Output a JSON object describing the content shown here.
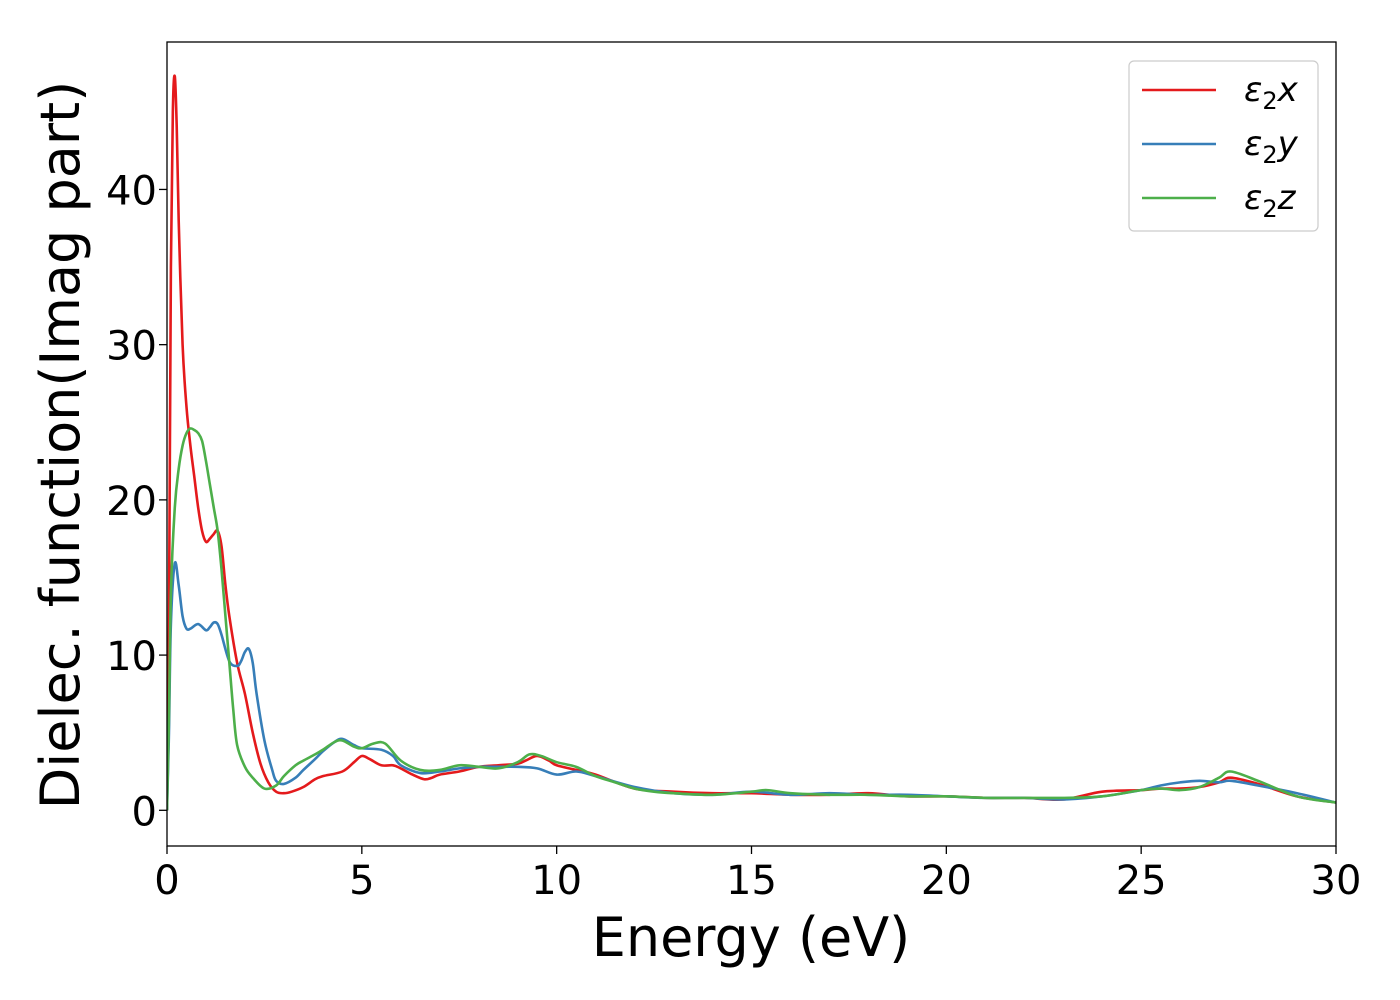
{
  "chart_data": {
    "type": "line",
    "xlabel": "Energy (eV)",
    "ylabel": "Dielec. function(Imag part)",
    "xlim": [
      0,
      30
    ],
    "ylim": [
      -2.3,
      49.5
    ],
    "xticks": [
      0,
      5,
      10,
      15,
      20,
      25,
      30
    ],
    "xtick_labels": [
      "0",
      "5",
      "10",
      "15",
      "20",
      "25",
      "30"
    ],
    "yticks": [
      0,
      10,
      20,
      30,
      40
    ],
    "ytick_labels": [
      "0",
      "10",
      "20",
      "30",
      "40"
    ],
    "grid": false,
    "legend_position": "top-right",
    "series": [
      {
        "name": "ε2x",
        "legend_main": "ε",
        "legend_sub": "2",
        "legend_suffix": "x",
        "color": "#e41a1c",
        "x": [
          0,
          0.05,
          0.1,
          0.15,
          0.2,
          0.25,
          0.3,
          0.4,
          0.5,
          0.6,
          0.7,
          0.8,
          0.9,
          1.0,
          1.1,
          1.2,
          1.3,
          1.4,
          1.5,
          1.6,
          1.8,
          2.0,
          2.2,
          2.4,
          2.6,
          2.8,
          3.0,
          3.2,
          3.5,
          3.8,
          4.0,
          4.5,
          4.8,
          5.0,
          5.2,
          5.5,
          5.8,
          6.0,
          6.3,
          6.6,
          6.8,
          7.0,
          7.5,
          8.0,
          8.5,
          9.0,
          9.2,
          9.5,
          9.8,
          10.0,
          10.5,
          11.0,
          12.0,
          13.0,
          14.0,
          15.0,
          16.0,
          17.0,
          18.0,
          19.0,
          20.0,
          21.0,
          22.0,
          23.0,
          24.0,
          25.0,
          25.5,
          26.0,
          26.5,
          27.0,
          27.3,
          28.0,
          29.0,
          30.0
        ],
        "y": [
          0,
          12,
          35,
          45,
          47.3,
          44,
          38,
          30,
          26,
          23.5,
          21.5,
          19.5,
          18,
          17.3,
          17.5,
          17.8,
          18,
          17,
          14.5,
          12.5,
          9.5,
          7.5,
          5,
          3,
          1.8,
          1.2,
          1.1,
          1.2,
          1.5,
          2.0,
          2.2,
          2.5,
          3.1,
          3.5,
          3.3,
          2.9,
          2.9,
          2.7,
          2.3,
          2.0,
          2.1,
          2.3,
          2.5,
          2.8,
          2.9,
          3.0,
          3.2,
          3.5,
          3.2,
          2.9,
          2.6,
          2.3,
          1.4,
          1.2,
          1.1,
          1.1,
          1.0,
          1.0,
          1.1,
          0.9,
          0.9,
          0.8,
          0.8,
          0.7,
          1.2,
          1.3,
          1.4,
          1.4,
          1.5,
          1.8,
          2.1,
          1.7,
          0.9,
          0.5
        ]
      },
      {
        "name": "ε2y",
        "legend_main": "ε",
        "legend_sub": "2",
        "legend_suffix": "y",
        "color": "#377eb8",
        "x": [
          0,
          0.05,
          0.1,
          0.2,
          0.3,
          0.4,
          0.5,
          0.6,
          0.8,
          1.0,
          1.1,
          1.2,
          1.3,
          1.4,
          1.6,
          1.8,
          1.9,
          2.0,
          2.1,
          2.2,
          2.3,
          2.5,
          2.7,
          2.8,
          3.0,
          3.3,
          3.5,
          3.8,
          4.0,
          4.3,
          4.5,
          4.8,
          5.0,
          5.5,
          5.8,
          6.0,
          6.5,
          7.0,
          7.5,
          8.0,
          8.5,
          9.0,
          9.5,
          10.0,
          10.5,
          11.0,
          12.0,
          13.0,
          14.0,
          15.0,
          16.0,
          17.0,
          18.0,
          19.0,
          20.0,
          21.0,
          22.0,
          23.0,
          24.0,
          25.0,
          25.5,
          26.0,
          26.5,
          27.0,
          27.3,
          28.0,
          29.0,
          30.0
        ],
        "y": [
          0,
          5,
          12,
          15.9,
          14.5,
          12.5,
          11.7,
          11.7,
          12.0,
          11.6,
          11.8,
          12.1,
          12.0,
          11.3,
          9.6,
          9.3,
          9.6,
          10.2,
          10.4,
          9.5,
          7.5,
          4.5,
          2.6,
          1.9,
          1.7,
          2.1,
          2.6,
          3.3,
          3.8,
          4.4,
          4.6,
          4.2,
          4.0,
          3.9,
          3.5,
          2.9,
          2.4,
          2.5,
          2.7,
          2.8,
          2.8,
          2.8,
          2.7,
          2.3,
          2.5,
          2.2,
          1.5,
          1.1,
          1.0,
          1.2,
          1.0,
          1.1,
          1.0,
          1.0,
          0.9,
          0.8,
          0.8,
          0.7,
          0.9,
          1.3,
          1.6,
          1.8,
          1.9,
          1.8,
          1.9,
          1.6,
          1.1,
          0.5
        ]
      },
      {
        "name": "ε2z",
        "legend_main": "ε",
        "legend_sub": "2",
        "legend_suffix": "z",
        "color": "#4daf4a",
        "x": [
          0,
          0.05,
          0.1,
          0.2,
          0.3,
          0.4,
          0.5,
          0.6,
          0.7,
          0.8,
          0.9,
          1.0,
          1.1,
          1.2,
          1.3,
          1.4,
          1.5,
          1.6,
          1.7,
          1.8,
          2.0,
          2.2,
          2.5,
          2.8,
          3.0,
          3.3,
          3.5,
          3.8,
          4.0,
          4.3,
          4.5,
          4.8,
          5.0,
          5.3,
          5.6,
          6.0,
          6.5,
          7.0,
          7.5,
          8.0,
          8.5,
          9.0,
          9.3,
          9.6,
          10.0,
          10.5,
          11.0,
          11.5,
          12.0,
          12.5,
          13.0,
          14.0,
          15.0,
          15.4,
          16.0,
          17.0,
          18.0,
          19.0,
          20.0,
          21.0,
          22.0,
          23.0,
          24.0,
          25.0,
          25.5,
          26.0,
          26.5,
          27.0,
          27.3,
          28.0,
          29.0,
          30.0
        ],
        "y": [
          0,
          6,
          14,
          19.5,
          22,
          23.5,
          24.3,
          24.6,
          24.5,
          24.3,
          23.8,
          22.5,
          21,
          19.5,
          18,
          15.5,
          12.5,
          9.5,
          6.5,
          4.2,
          2.8,
          2.1,
          1.4,
          1.6,
          2.2,
          2.9,
          3.2,
          3.6,
          3.9,
          4.4,
          4.5,
          4.1,
          4.0,
          4.3,
          4.3,
          3.2,
          2.6,
          2.6,
          2.9,
          2.8,
          2.7,
          3.1,
          3.6,
          3.5,
          3.1,
          2.8,
          2.2,
          1.8,
          1.4,
          1.2,
          1.1,
          1.0,
          1.2,
          1.3,
          1.1,
          1.0,
          1.0,
          0.9,
          0.9,
          0.8,
          0.8,
          0.8,
          0.9,
          1.3,
          1.4,
          1.3,
          1.5,
          2.1,
          2.5,
          1.9,
          0.9,
          0.5
        ]
      }
    ]
  }
}
